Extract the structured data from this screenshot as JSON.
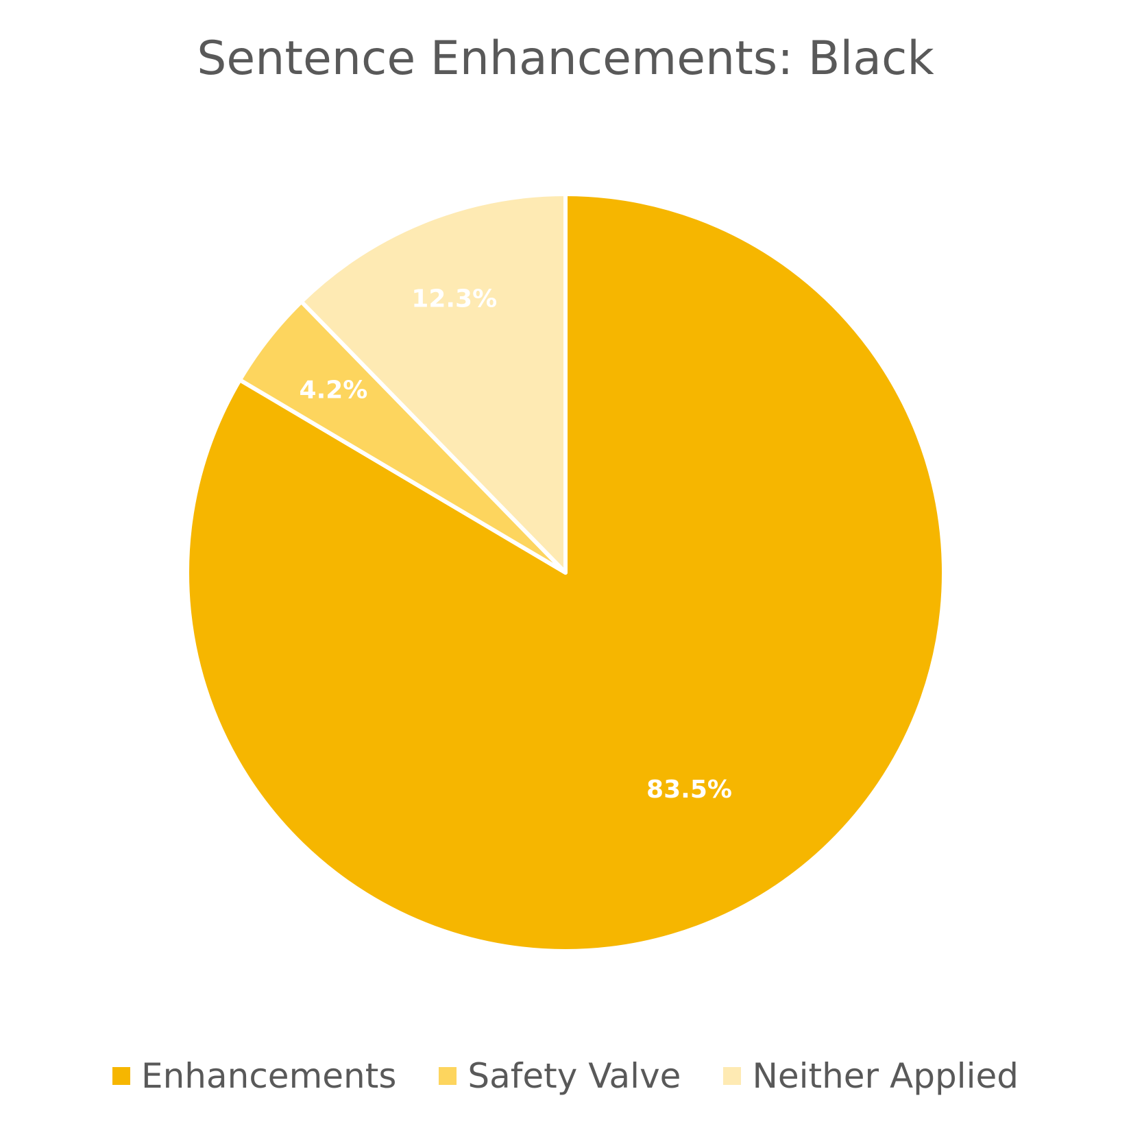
{
  "chart_data": {
    "type": "pie",
    "title": "Sentence Enhancements: Black",
    "categories": [
      "Enhancements",
      "Safety Valve",
      "Neither Applied"
    ],
    "values": [
      83.5,
      4.2,
      12.3
    ],
    "data_labels": [
      "83.5%",
      "4.2%",
      "12.3%"
    ],
    "colors": [
      "#F6B600",
      "#FDD55E",
      "#FEEAB3"
    ],
    "legend_position": "bottom"
  }
}
